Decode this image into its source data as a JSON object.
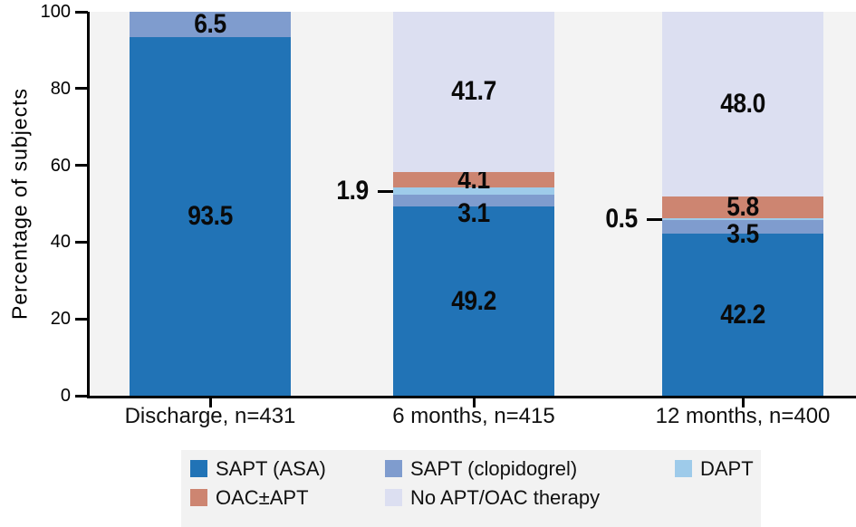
{
  "chart_data": {
    "type": "bar",
    "stacked": true,
    "title": "",
    "xlabel": "",
    "ylabel": "Percentage of subjects",
    "ylim": [
      0,
      100
    ],
    "yticks": [
      0,
      20,
      40,
      60,
      80,
      100
    ],
    "grid": false,
    "plot_background": "#f3f3f3",
    "legend_position": "bottom",
    "categories": [
      "Discharge, n=431",
      "6 months, n=415",
      "12 months, n=400"
    ],
    "series": [
      {
        "name": "SAPT (ASA)",
        "color": "#2173b6",
        "values": [
          93.5,
          49.2,
          42.2
        ],
        "labels": [
          "93.5",
          "49.2",
          "42.2"
        ]
      },
      {
        "name": "SAPT (clopidogrel)",
        "color": "#7f9cce",
        "values": [
          6.5,
          3.1,
          3.5
        ],
        "labels": [
          "6.5",
          "3.1",
          "3.5"
        ],
        "label_dy": [
          0,
          14,
          8
        ]
      },
      {
        "name": "DAPT",
        "color": "#9ecbea",
        "values": [
          0,
          1.9,
          0.5
        ],
        "labels": [
          "",
          "1.9",
          "0.5"
        ],
        "callout": [
          false,
          true,
          true
        ]
      },
      {
        "name": "OAC±APT",
        "color": "#cd8571",
        "values": [
          0,
          4.1,
          5.8
        ],
        "labels": [
          "",
          "4.1",
          "5.8"
        ]
      },
      {
        "name": "No APT/OAC therapy",
        "color": "#dcdff1",
        "values": [
          0,
          41.7,
          48.0
        ],
        "labels": [
          "",
          "41.7",
          "48.0"
        ]
      }
    ],
    "legend_rows": [
      [
        0,
        1,
        2
      ],
      [
        3,
        4
      ]
    ]
  }
}
